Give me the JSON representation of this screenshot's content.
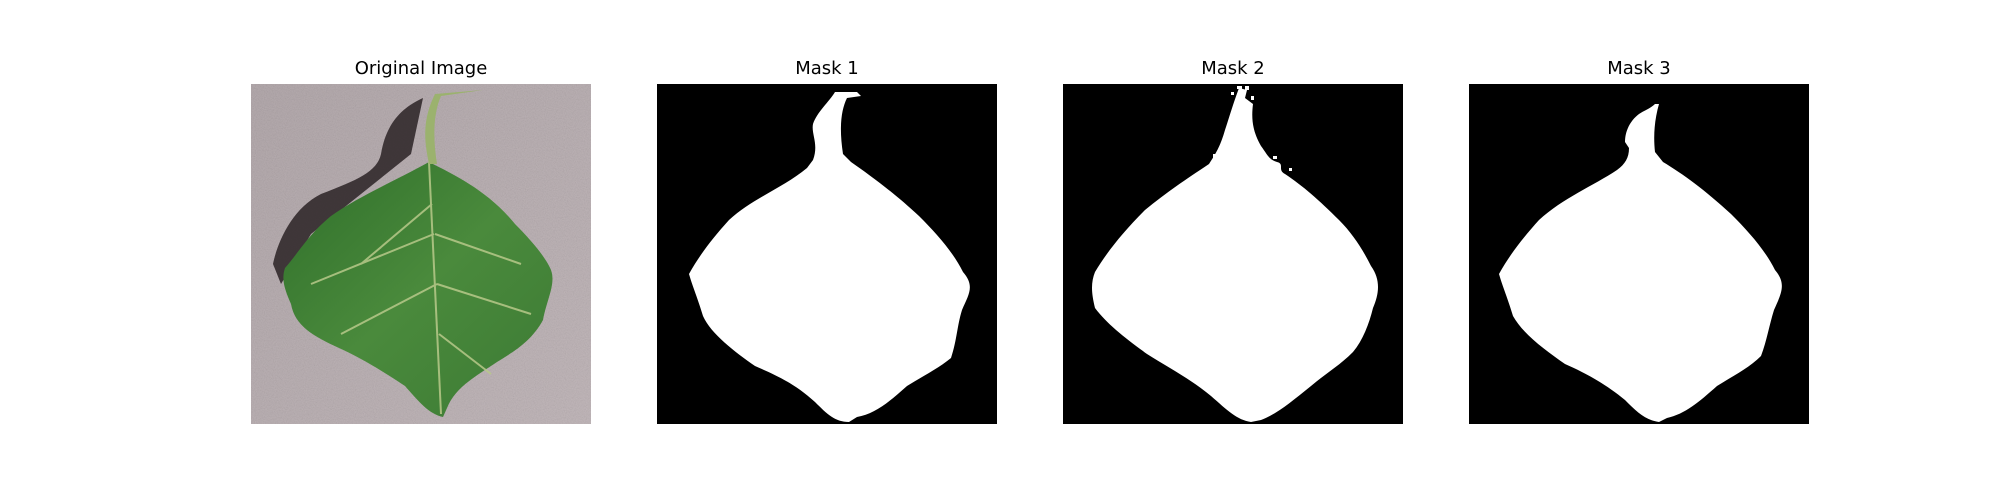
{
  "figure": {
    "panels": [
      {
        "title": "Original Image"
      },
      {
        "title": "Mask 1"
      },
      {
        "title": "Mask 2"
      },
      {
        "title": "Mask 3"
      }
    ],
    "colors": {
      "background": "#ffffff",
      "mask_background": "#000000",
      "mask_foreground": "#ffffff",
      "leaf": "#3f7d33",
      "surface": "#b9aeb1"
    }
  }
}
